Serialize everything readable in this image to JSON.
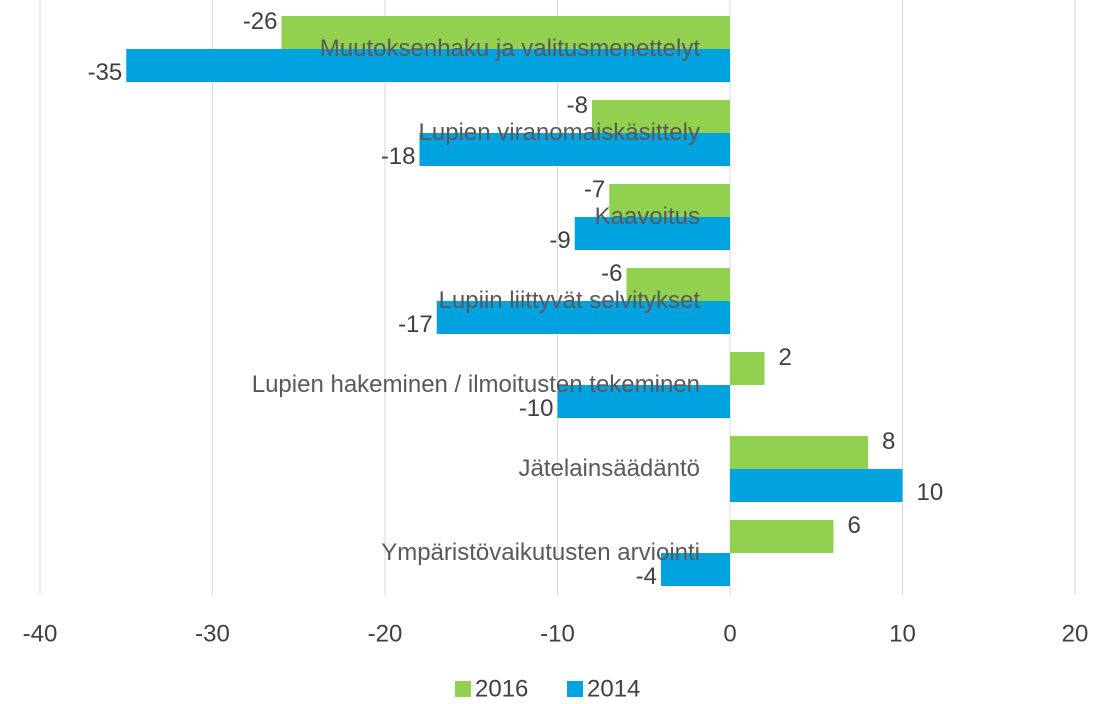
{
  "chart_data": {
    "type": "hbar",
    "categories": [
      "Muutoksenhaku ja valitusmenettelyt",
      "Lupien viranomaiskäsittely",
      "Kaavoitus",
      "Lupiin liittyvät selvitykset",
      "Lupien hakeminen / ilmoitusten tekeminen",
      "Jätelainsäädäntö",
      "Ympäristövaikutusten arviointi"
    ],
    "series": [
      {
        "name": "2016",
        "color": "#92d050",
        "values": [
          -26,
          -8,
          -7,
          -6,
          2,
          8,
          6
        ]
      },
      {
        "name": "2014",
        "color": "#00a2e0",
        "values": [
          -35,
          -18,
          -9,
          -17,
          -10,
          10,
          -4
        ]
      }
    ],
    "xlim": [
      -40,
      20
    ],
    "xticks": [
      -40,
      -30,
      -20,
      -10,
      0,
      10,
      20
    ],
    "grid": true,
    "legend": "bottom"
  }
}
